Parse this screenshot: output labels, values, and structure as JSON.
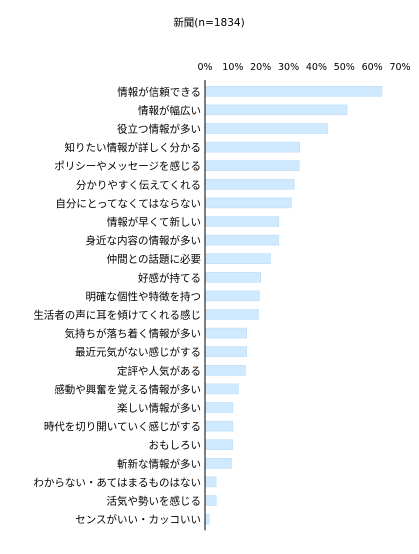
{
  "chart_data": {
    "type": "bar",
    "orientation": "horizontal",
    "title": "新聞(n=1834)",
    "xlabel": "",
    "ylabel": "",
    "xlim": [
      0,
      70
    ],
    "tick_labels": [
      "0%",
      "10%",
      "20%",
      "30%",
      "40%",
      "50%",
      "60%",
      "70%"
    ],
    "grid": false,
    "legend": "none",
    "bar_color": "#cfeaff",
    "bar_border_color": "#bcdcf5",
    "categories": [
      "情報が信頼できる",
      "情報が幅広い",
      "役立つ情報が多い",
      "知りたい情報が詳しく分かる",
      "ポリシーやメッセージを感じる",
      "分かりやすく伝えてくれる",
      "自分にとってなくてはならない",
      "情報が早くて新しい",
      "身近な内容の情報が多い",
      "仲間との話題に必要",
      "好感が持てる",
      "明確な個性や特徴を持つ",
      "生活者の声に耳を傾けてくれる感じ",
      "気持ちが落ち着く情報が多い",
      "最近元気がない感じがする",
      "定評や人気がある",
      "感動や興奮を覚える情報が多い",
      "楽しい情報が多い",
      "時代を切り開いていく感じがする",
      "おもしろい",
      "斬新な情報が多い",
      "わからない・あてはまるものはない",
      "活気や勢いを感じる",
      "センスがいい・カッコいい"
    ],
    "values": [
      63.5,
      51.0,
      44.0,
      34.0,
      33.8,
      32.0,
      31.0,
      26.5,
      26.5,
      23.5,
      20.0,
      19.5,
      19.2,
      15.0,
      15.0,
      14.5,
      12.0,
      10.0,
      10.0,
      10.0,
      9.5,
      4.0,
      4.0,
      1.5
    ]
  }
}
